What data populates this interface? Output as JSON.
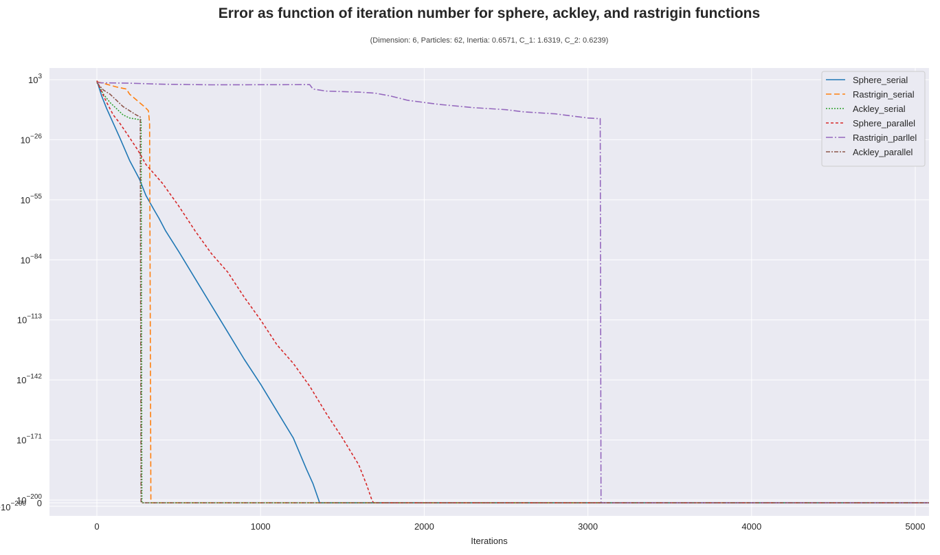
{
  "title": "Error as function of iteration number for sphere, ackley, and rastrigin functions",
  "subtitle": "(Dimension: 6, Particles: 62, Inertia: 0.6571, C_1: 1.6319, C_2: 0.6239)",
  "colors": {
    "background": "#eaeaf2",
    "grid": "#ffffff",
    "Sphere_serial": "#1f77b4",
    "Rastrigin_serial": "#ff7f0e",
    "Ackley_serial": "#2ca02c",
    "Sphere_parallel": "#d62728",
    "Rastrigin_parllel": "#9467bd",
    "Ackley_parallel": "#8c564b"
  },
  "chart_data": {
    "type": "line",
    "title": "Error as function of iteration number for sphere, ackley, and rastrigin functions",
    "subtitle": "(Dimension: 6, Particles: 62, Inertia: 0.6571, C_1: 1.6319, C_2: 0.6239)",
    "xlabel": "Iterations",
    "ylabel": "",
    "xlim": [
      -290,
      5090
    ],
    "yscale": "symlog",
    "xticks": [
      {
        "value": 0,
        "label": "0"
      },
      {
        "value": 1000,
        "label": "1000"
      },
      {
        "value": 2000,
        "label": "2000"
      },
      {
        "value": 3000,
        "label": "3000"
      },
      {
        "value": 4000,
        "label": "4000"
      },
      {
        "value": 5000,
        "label": "5000"
      }
    ],
    "yticks": [
      {
        "exp": 3,
        "base": "10",
        "power": "3"
      },
      {
        "exp": -26,
        "base": "10",
        "power": "−26"
      },
      {
        "exp": -55,
        "base": "10",
        "power": "−55"
      },
      {
        "exp": -84,
        "base": "10",
        "power": "−84"
      },
      {
        "exp": -113,
        "base": "10",
        "power": "−113"
      },
      {
        "exp": -142,
        "base": "10",
        "power": "−142"
      },
      {
        "exp": -171,
        "base": "10",
        "power": "−171"
      },
      {
        "exp": -200,
        "base": "10",
        "power": "−200"
      }
    ],
    "ytick_zero_label": "0",
    "ytick_neg_label": {
      "sign": "−",
      "base": "10",
      "power": "−200"
    },
    "grid": true,
    "legend_position": "top-right",
    "series": [
      {
        "name": "Sphere_serial",
        "dash": "",
        "points": [
          [
            0,
            2.5
          ],
          [
            30,
            -5
          ],
          [
            60,
            -11
          ],
          [
            100,
            -18
          ],
          [
            140,
            -25
          ],
          [
            200,
            -36
          ],
          [
            260,
            -45
          ],
          [
            300,
            -53
          ],
          [
            350,
            -60
          ],
          [
            380,
            -64
          ],
          [
            420,
            -70
          ],
          [
            500,
            -80
          ],
          [
            600,
            -93
          ],
          [
            700,
            -106
          ],
          [
            800,
            -119
          ],
          [
            900,
            -132
          ],
          [
            1000,
            -144
          ],
          [
            1100,
            -157
          ],
          [
            1200,
            -170
          ],
          [
            1280,
            -185
          ],
          [
            1320,
            -192
          ],
          [
            1355,
            -200
          ],
          [
            1360,
            -204.4
          ],
          [
            5090,
            -204.4
          ]
        ]
      },
      {
        "name": "Rastrigin_serial",
        "dash": "8,4",
        "points": [
          [
            0,
            2
          ],
          [
            50,
            1
          ],
          [
            120,
            -0.5
          ],
          [
            180,
            -1.5
          ],
          [
            200,
            -4
          ],
          [
            230,
            -6
          ],
          [
            260,
            -8
          ],
          [
            290,
            -10
          ],
          [
            315,
            -12
          ],
          [
            322,
            -18
          ],
          [
            330,
            -204.4
          ],
          [
            5090,
            -204.4
          ]
        ]
      },
      {
        "name": "Ackley_serial",
        "dash": "2,2",
        "points": [
          [
            0,
            2
          ],
          [
            40,
            -4
          ],
          [
            80,
            -8
          ],
          [
            120,
            -11
          ],
          [
            160,
            -14
          ],
          [
            200,
            -15.5
          ],
          [
            240,
            -16
          ],
          [
            270,
            -16.5
          ],
          [
            275,
            -204.4
          ],
          [
            5090,
            -204.4
          ]
        ]
      },
      {
        "name": "Sphere_parallel",
        "dash": "4,3",
        "points": [
          [
            0,
            2.5
          ],
          [
            30,
            -3
          ],
          [
            60,
            -8
          ],
          [
            100,
            -14
          ],
          [
            140,
            -18
          ],
          [
            200,
            -25
          ],
          [
            250,
            -31
          ],
          [
            300,
            -38
          ],
          [
            400,
            -47
          ],
          [
            500,
            -58
          ],
          [
            600,
            -70
          ],
          [
            700,
            -81
          ],
          [
            800,
            -90
          ],
          [
            900,
            -102
          ],
          [
            1000,
            -113
          ],
          [
            1100,
            -125
          ],
          [
            1200,
            -134
          ],
          [
            1300,
            -145
          ],
          [
            1400,
            -158
          ],
          [
            1500,
            -170
          ],
          [
            1600,
            -183
          ],
          [
            1650,
            -193
          ],
          [
            1680,
            -200
          ],
          [
            1690,
            -204.4
          ],
          [
            5090,
            -204.4
          ]
        ]
      },
      {
        "name": "Rastrigin_parllel",
        "dash": "10,3,2,3",
        "points": [
          [
            0,
            1.5
          ],
          [
            200,
            1.3
          ],
          [
            400,
            0.8
          ],
          [
            700,
            0.5
          ],
          [
            1300,
            0.6
          ],
          [
            1320,
            -1.5
          ],
          [
            1400,
            -2.5
          ],
          [
            1600,
            -3
          ],
          [
            1700,
            -3.5
          ],
          [
            1800,
            -5
          ],
          [
            1900,
            -7
          ],
          [
            2000,
            -8
          ],
          [
            2100,
            -9
          ],
          [
            2300,
            -10.5
          ],
          [
            2500,
            -11.5
          ],
          [
            2600,
            -12.5
          ],
          [
            2800,
            -13.5
          ],
          [
            2900,
            -14.5
          ],
          [
            3000,
            -15.5
          ],
          [
            3075,
            -15.8
          ],
          [
            3080,
            -204.4
          ],
          [
            5090,
            -204.4
          ]
        ]
      },
      {
        "name": "Ackley_parallel",
        "dash": "6,2,2,2",
        "points": [
          [
            0,
            1.5
          ],
          [
            40,
            -2
          ],
          [
            80,
            -4
          ],
          [
            120,
            -7
          ],
          [
            160,
            -10
          ],
          [
            200,
            -12
          ],
          [
            240,
            -14
          ],
          [
            265,
            -15
          ],
          [
            270,
            -204.4
          ],
          [
            5090,
            -204.4
          ]
        ]
      }
    ]
  }
}
